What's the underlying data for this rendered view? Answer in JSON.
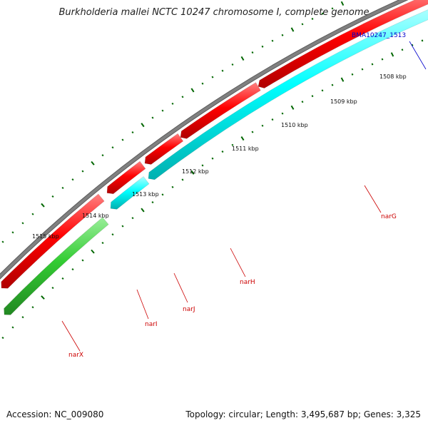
{
  "title": "Burkholderia mallei NCTC 10247 chromosome I, complete genome",
  "footer": {
    "accession": "Accession: NC_009080",
    "topology": "Topology: circular; Length: 3,495,687 bp; Genes: 3,325"
  },
  "scale_labels": [
    "1515 kbp",
    "1514 kbp",
    "1513 kbp",
    "1512 kbp",
    "1511 kbp",
    "1510 kbp",
    "1509 kbp",
    "1508 kbp"
  ],
  "locus_tag": "BMA10247_1513",
  "genes": [
    {
      "name": "narX",
      "strand": "reverse",
      "color": "#33cc33"
    },
    {
      "name": "narI",
      "strand": "forward",
      "color": "#ff0000"
    },
    {
      "name": "narJ",
      "strand": "forward",
      "color": "#ff0000"
    },
    {
      "name": "narH",
      "strand": "forward",
      "color": "#ff0000"
    },
    {
      "name": "narG",
      "strand": "forward",
      "color": "#ff0000"
    }
  ],
  "colors": {
    "backbone": "#808080",
    "forward_cds": "#ff0000",
    "reverse_cds": "#00ffff",
    "reverse_gene": "#33cc33",
    "ticks": "#006600",
    "gene_label": "#cc0000",
    "locus_label": "#0000cc"
  }
}
